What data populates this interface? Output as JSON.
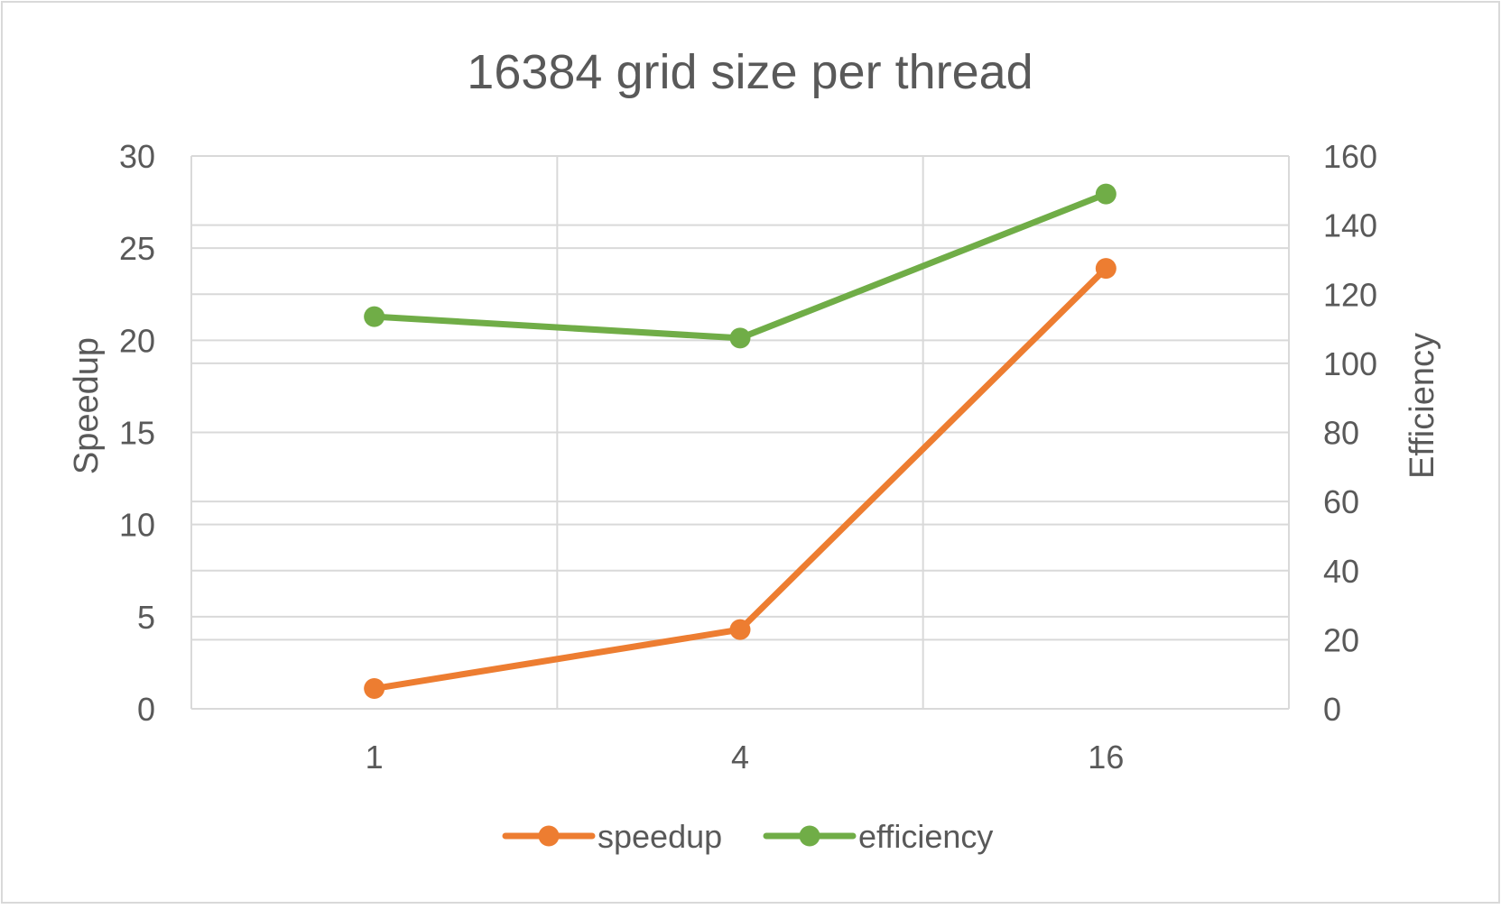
{
  "chart_data": {
    "type": "line",
    "title": "16384 grid size per thread",
    "categories": [
      "1",
      "4",
      "16"
    ],
    "ylabel": "Speedup",
    "y2label": "Efficiency",
    "ylim": [
      0,
      30
    ],
    "y2lim": [
      0,
      160
    ],
    "yticks": [
      "0",
      "5",
      "10",
      "15",
      "20",
      "25",
      "30"
    ],
    "y2ticks": [
      "0",
      "20",
      "40",
      "60",
      "80",
      "100",
      "120",
      "140",
      "160"
    ],
    "grid": true,
    "legend_position": "bottom",
    "series": [
      {
        "name": "speedup",
        "axis": "left",
        "color": "#ED7D31",
        "values": [
          1.1,
          4.3,
          23.9
        ]
      },
      {
        "name": "efficiency",
        "axis": "right",
        "color": "#70AD47",
        "values": [
          113.5,
          107.3,
          149.0
        ]
      }
    ]
  },
  "colors": {
    "grid": "#D9D9D9",
    "text": "#595959",
    "frame": "#D9D9D9",
    "background": "#FFFFFF"
  }
}
